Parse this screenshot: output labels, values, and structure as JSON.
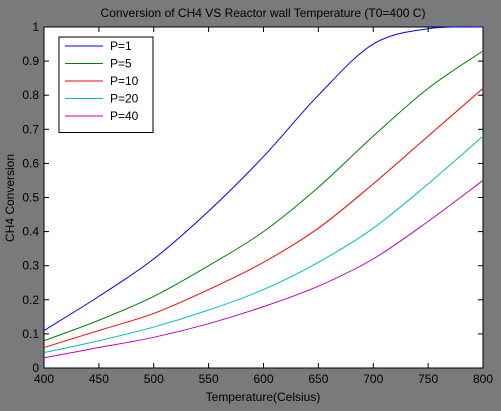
{
  "chart_data": {
    "type": "line",
    "title": "Conversion of CH4 VS Reactor wall Temperature (T0=400 C)",
    "xlabel": "Temperature(Celsius)",
    "ylabel": "CH4 Conversion",
    "xlim": [
      400,
      800
    ],
    "ylim": [
      0,
      1
    ],
    "xticks": [
      400,
      450,
      500,
      550,
      600,
      650,
      700,
      750,
      800
    ],
    "yticks": [
      0,
      0.1,
      0.2,
      0.3,
      0.4,
      0.5,
      0.6,
      0.7,
      0.8,
      0.9,
      1
    ],
    "ytick_labels": [
      "0",
      "0.1",
      "0.2",
      "0.3",
      "0.4",
      "0.5",
      "0.6",
      "0.7",
      "0.8",
      "0.9",
      "1"
    ],
    "grid": false,
    "legend_position": "top-left",
    "x": [
      400,
      450,
      500,
      550,
      600,
      650,
      700,
      750,
      800
    ],
    "series": [
      {
        "name": "P=1",
        "color": "#0000ff",
        "values": [
          0.11,
          0.21,
          0.32,
          0.46,
          0.62,
          0.8,
          0.95,
          0.995,
          1.0
        ]
      },
      {
        "name": "P=5",
        "color": "#008000",
        "values": [
          0.08,
          0.14,
          0.21,
          0.3,
          0.4,
          0.53,
          0.68,
          0.82,
          0.93
        ]
      },
      {
        "name": "P=10",
        "color": "#ff0000",
        "values": [
          0.06,
          0.11,
          0.16,
          0.23,
          0.31,
          0.41,
          0.54,
          0.68,
          0.82
        ]
      },
      {
        "name": "P=20",
        "color": "#00bfbf",
        "values": [
          0.045,
          0.08,
          0.12,
          0.17,
          0.23,
          0.31,
          0.41,
          0.54,
          0.68
        ]
      },
      {
        "name": "P=40",
        "color": "#bf00bf",
        "values": [
          0.03,
          0.06,
          0.09,
          0.13,
          0.18,
          0.24,
          0.32,
          0.43,
          0.55
        ]
      }
    ]
  }
}
